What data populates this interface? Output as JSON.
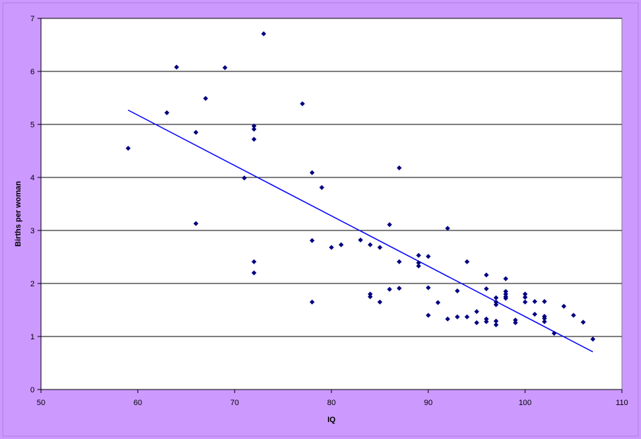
{
  "chart_data": {
    "type": "scatter",
    "title": "",
    "xlabel": "IQ",
    "ylabel": "Births per woman",
    "xlim": [
      50,
      110
    ],
    "ylim": [
      0,
      7
    ],
    "x_ticks": [
      50,
      60,
      70,
      80,
      90,
      100,
      110
    ],
    "y_ticks": [
      0,
      1,
      2,
      3,
      4,
      5,
      6,
      7
    ],
    "grid": "horizontal",
    "legend": "none",
    "colors": {
      "background": "#cc99ff",
      "plot_area": "#ffffff",
      "marker": "#000080",
      "trendline": "#0000ff",
      "gridline": "#000000"
    },
    "series": [
      {
        "marker": "diamond",
        "points": [
          [
            59,
            4.55
          ],
          [
            63,
            5.22
          ],
          [
            64,
            6.08
          ],
          [
            66,
            4.85
          ],
          [
            66,
            3.13
          ],
          [
            67,
            5.49
          ],
          [
            69,
            6.07
          ],
          [
            71,
            3.99
          ],
          [
            72,
            4.97
          ],
          [
            72,
            4.91
          ],
          [
            72,
            4.72
          ],
          [
            72,
            2.41
          ],
          [
            72,
            2.2
          ],
          [
            73,
            6.71
          ],
          [
            77,
            5.39
          ],
          [
            78,
            4.09
          ],
          [
            78,
            2.81
          ],
          [
            78,
            1.65
          ],
          [
            79,
            3.81
          ],
          [
            80,
            2.68
          ],
          [
            81,
            2.73
          ],
          [
            83,
            2.82
          ],
          [
            84,
            2.73
          ],
          [
            84,
            1.8
          ],
          [
            84,
            1.75
          ],
          [
            85,
            2.68
          ],
          [
            85,
            1.65
          ],
          [
            86,
            3.11
          ],
          [
            86,
            1.89
          ],
          [
            87,
            4.18
          ],
          [
            87,
            2.41
          ],
          [
            87,
            1.91
          ],
          [
            89,
            2.53
          ],
          [
            89,
            2.39
          ],
          [
            89,
            2.33
          ],
          [
            90,
            2.51
          ],
          [
            90,
            1.92
          ],
          [
            90,
            1.4
          ],
          [
            91,
            1.64
          ],
          [
            92,
            3.04
          ],
          [
            92,
            1.33
          ],
          [
            93,
            1.86
          ],
          [
            93,
            1.37
          ],
          [
            94,
            2.41
          ],
          [
            94,
            1.37
          ],
          [
            95,
            1.47
          ],
          [
            95,
            1.26
          ],
          [
            96,
            2.16
          ],
          [
            96,
            1.9
          ],
          [
            96,
            1.33
          ],
          [
            96,
            1.28
          ],
          [
            97,
            1.73
          ],
          [
            97,
            1.65
          ],
          [
            97,
            1.6
          ],
          [
            97,
            1.29
          ],
          [
            97,
            1.22
          ],
          [
            98,
            2.09
          ],
          [
            98,
            1.85
          ],
          [
            98,
            1.8
          ],
          [
            98,
            1.75
          ],
          [
            98,
            1.72
          ],
          [
            99,
            1.31
          ],
          [
            99,
            1.26
          ],
          [
            100,
            1.8
          ],
          [
            100,
            1.74
          ],
          [
            100,
            1.65
          ],
          [
            101,
            1.66
          ],
          [
            101,
            1.42
          ],
          [
            102,
            1.66
          ],
          [
            102,
            1.38
          ],
          [
            102,
            1.34
          ],
          [
            102,
            1.28
          ],
          [
            103,
            1.06
          ],
          [
            104,
            1.57
          ],
          [
            105,
            1.4
          ],
          [
            106,
            1.27
          ],
          [
            107,
            0.95
          ]
        ]
      }
    ],
    "trendline": {
      "type": "linear",
      "x": [
        59,
        107
      ],
      "y": [
        5.27,
        0.71
      ]
    }
  }
}
